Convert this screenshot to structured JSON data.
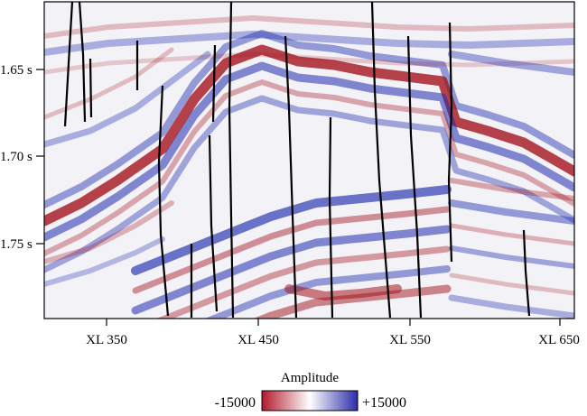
{
  "figure": {
    "y_ticks": [
      {
        "label": "1.65 s",
        "value": 1.65
      },
      {
        "label": "1.70 s",
        "value": 1.7
      },
      {
        "label": "1.75 s",
        "value": 1.75
      }
    ],
    "x_ticks": [
      {
        "label": "XL 350",
        "value": 350
      },
      {
        "label": "XL 450",
        "value": 450
      },
      {
        "label": "XL 550",
        "value": 550
      },
      {
        "label": "XL 650",
        "value": 650
      }
    ],
    "colorbar": {
      "title": "Amplitude",
      "min_label": "-15000",
      "max_label": "+15000",
      "min": -15000,
      "max": 15000,
      "low_color": "#b2182b",
      "mid_color": "#ffffff",
      "high_color": "#2c2cab"
    },
    "palette": {
      "red": "#a4141e",
      "blue": "#1f2cae",
      "fault": "#000000"
    }
  }
}
